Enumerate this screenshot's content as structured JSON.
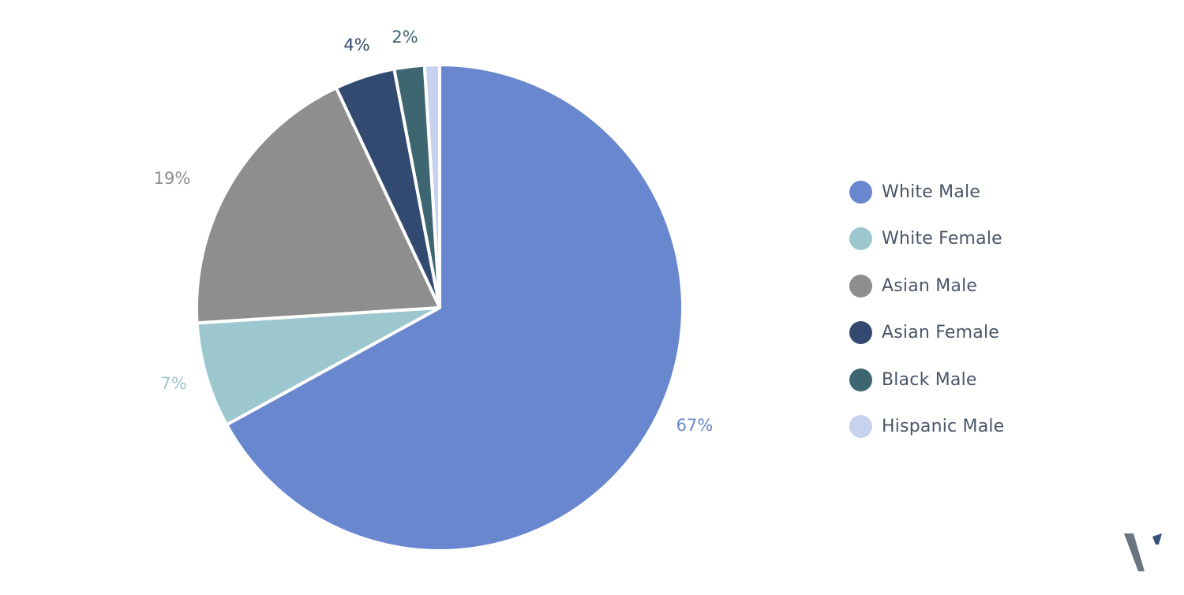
{
  "chart_data": {
    "type": "pie",
    "title": "",
    "slices": [
      {
        "name": "White Male",
        "value": 67,
        "label": "67%",
        "color": "#6987cf"
      },
      {
        "name": "White Female",
        "value": 7,
        "label": "7%",
        "color": "#9dc7ce"
      },
      {
        "name": "Asian Male",
        "value": 19,
        "label": "19%",
        "color": "#8e8e8e"
      },
      {
        "name": "Asian Female",
        "value": 4,
        "label": "4%",
        "color": "#334a70"
      },
      {
        "name": "Black Male",
        "value": 2,
        "label": "2%",
        "color": "#3e6671"
      },
      {
        "name": "Hispanic Male",
        "value": 1,
        "label": "",
        "color": "#c8d2ee"
      }
    ],
    "draw_order": [
      "Hispanic Male",
      "Black Male",
      "Asian Female",
      "Asian Male",
      "White Female",
      "White Male"
    ],
    "legend_placement": "right"
  },
  "legend": {
    "items": [
      {
        "label": "White Male",
        "color": "#6987cf"
      },
      {
        "label": "White Female",
        "color": "#9dc7ce"
      },
      {
        "label": "Asian Male",
        "color": "#8e8e8e"
      },
      {
        "label": "Asian Female",
        "color": "#334a70"
      },
      {
        "label": "Black Male",
        "color": "#3e6671"
      },
      {
        "label": "Hispanic Male",
        "color": "#c8d2ee"
      }
    ]
  },
  "logo": {
    "colors": {
      "left": "#6b7581",
      "right": "#37527a"
    }
  }
}
